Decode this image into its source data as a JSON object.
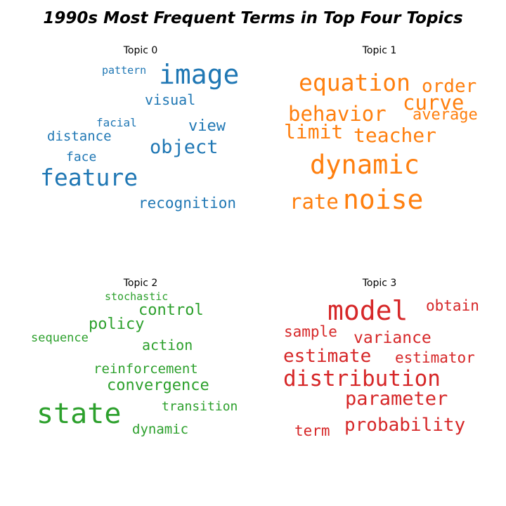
{
  "figure": {
    "title": "1990s Most Frequent Terms in Top Four Topics"
  },
  "chart_data": [
    {
      "type": "wordcloud",
      "title": "Topic 0",
      "color": "#1f77b4",
      "words": [
        {
          "text": "pattern",
          "weight": 0.35
        },
        {
          "text": "image",
          "weight": 1.0
        },
        {
          "text": "visual",
          "weight": 0.45
        },
        {
          "text": "facial",
          "weight": 0.35
        },
        {
          "text": "view",
          "weight": 0.55
        },
        {
          "text": "distance",
          "weight": 0.45
        },
        {
          "text": "object",
          "weight": 0.7
        },
        {
          "text": "face",
          "weight": 0.45
        },
        {
          "text": "feature",
          "weight": 0.85
        },
        {
          "text": "recognition",
          "weight": 0.55
        }
      ]
    },
    {
      "type": "wordcloud",
      "title": "Topic 1",
      "color": "#ff7f0e",
      "words": [
        {
          "text": "equation",
          "weight": 0.85
        },
        {
          "text": "order",
          "weight": 0.6
        },
        {
          "text": "curve",
          "weight": 0.7
        },
        {
          "text": "behavior",
          "weight": 0.7
        },
        {
          "text": "average",
          "weight": 0.5
        },
        {
          "text": "limit",
          "weight": 0.65
        },
        {
          "text": "teacher",
          "weight": 0.7
        },
        {
          "text": "dynamic",
          "weight": 0.95
        },
        {
          "text": "rate",
          "weight": 0.7
        },
        {
          "text": "noise",
          "weight": 1.0
        }
      ]
    },
    {
      "type": "wordcloud",
      "title": "Topic 2",
      "color": "#2ca02c",
      "words": [
        {
          "text": "stochastic",
          "weight": 0.3
        },
        {
          "text": "control",
          "weight": 0.5
        },
        {
          "text": "policy",
          "weight": 0.55
        },
        {
          "text": "sequence",
          "weight": 0.4
        },
        {
          "text": "action",
          "weight": 0.5
        },
        {
          "text": "reinforcement",
          "weight": 0.5
        },
        {
          "text": "convergence",
          "weight": 0.55
        },
        {
          "text": "state",
          "weight": 1.0
        },
        {
          "text": "transition",
          "weight": 0.45
        },
        {
          "text": "dynamic",
          "weight": 0.45
        }
      ]
    },
    {
      "type": "wordcloud",
      "title": "Topic 3",
      "color": "#d62728",
      "words": [
        {
          "text": "model",
          "weight": 1.0
        },
        {
          "text": "obtain",
          "weight": 0.55
        },
        {
          "text": "sample",
          "weight": 0.55
        },
        {
          "text": "variance",
          "weight": 0.6
        },
        {
          "text": "estimate",
          "weight": 0.75
        },
        {
          "text": "estimator",
          "weight": 0.55
        },
        {
          "text": "distribution",
          "weight": 0.85
        },
        {
          "text": "parameter",
          "weight": 0.75
        },
        {
          "text": "probability",
          "weight": 0.7
        },
        {
          "text": "term",
          "weight": 0.5
        }
      ]
    }
  ]
}
